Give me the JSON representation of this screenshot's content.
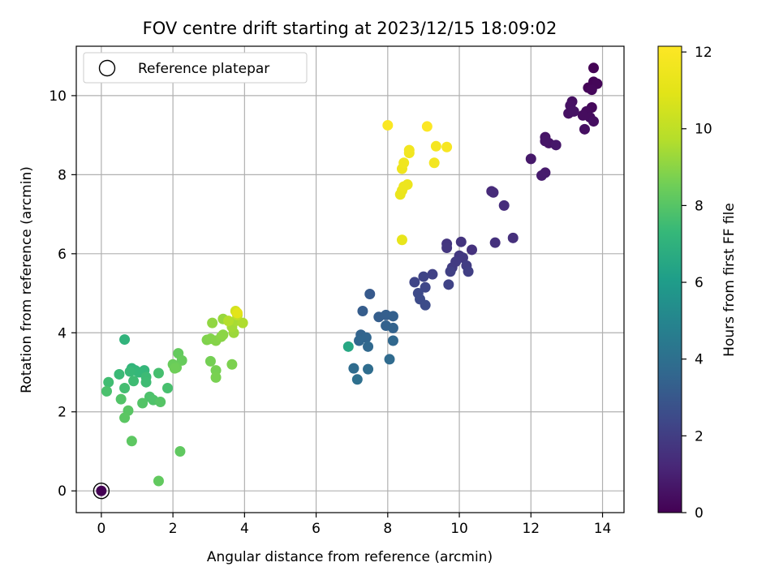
{
  "chart_data": {
    "type": "scatter",
    "title": "FOV centre drift starting at 2023/12/15 18:09:02",
    "xlabel": "Angular distance from reference (arcmin)",
    "ylabel": "Rotation from reference (arcmin)",
    "xlim": [
      -0.7,
      14.6
    ],
    "ylim": [
      -0.55,
      11.25
    ],
    "xticks": [
      0,
      2,
      4,
      6,
      8,
      10,
      12,
      14
    ],
    "yticks": [
      0,
      2,
      4,
      6,
      8,
      10
    ],
    "grid": true,
    "legend": {
      "position": "top-left",
      "label": "Reference platepar"
    },
    "reference_point": {
      "x": 0,
      "y": 0
    },
    "colorbar": {
      "label": "Hours from first FF file",
      "colormap": "viridis",
      "min": 0,
      "max": 12.15,
      "ticks": [
        0,
        2,
        4,
        6,
        8,
        10,
        12
      ]
    },
    "points": [
      {
        "x": 13.75,
        "y": 10.7,
        "c": 0.05
      },
      {
        "x": 13.6,
        "y": 10.2,
        "c": 0.1
      },
      {
        "x": 13.75,
        "y": 10.35,
        "c": 0.1
      },
      {
        "x": 13.85,
        "y": 10.3,
        "c": 0.15
      },
      {
        "x": 13.7,
        "y": 10.15,
        "c": 0.2
      },
      {
        "x": 13.7,
        "y": 9.7,
        "c": 0.25
      },
      {
        "x": 13.55,
        "y": 9.6,
        "c": 0.3
      },
      {
        "x": 13.45,
        "y": 9.5,
        "c": 0.35
      },
      {
        "x": 13.65,
        "y": 9.45,
        "c": 0.35
      },
      {
        "x": 13.75,
        "y": 9.35,
        "c": 0.4
      },
      {
        "x": 13.5,
        "y": 9.15,
        "c": 0.45
      },
      {
        "x": 13.15,
        "y": 9.85,
        "c": 0.45
      },
      {
        "x": 13.1,
        "y": 9.75,
        "c": 0.5
      },
      {
        "x": 13.05,
        "y": 9.55,
        "c": 0.5
      },
      {
        "x": 13.2,
        "y": 9.6,
        "c": 0.55
      },
      {
        "x": 12.4,
        "y": 8.95,
        "c": 0.6
      },
      {
        "x": 12.5,
        "y": 8.8,
        "c": 0.6
      },
      {
        "x": 12.4,
        "y": 8.85,
        "c": 0.65
      },
      {
        "x": 12.7,
        "y": 8.75,
        "c": 0.7
      },
      {
        "x": 12.0,
        "y": 8.4,
        "c": 0.75
      },
      {
        "x": 12.4,
        "y": 8.05,
        "c": 0.8
      },
      {
        "x": 12.3,
        "y": 7.98,
        "c": 0.85
      },
      {
        "x": 10.9,
        "y": 7.58,
        "c": 1.3
      },
      {
        "x": 10.95,
        "y": 7.55,
        "c": 1.35
      },
      {
        "x": 11.25,
        "y": 7.22,
        "c": 1.4
      },
      {
        "x": 11.5,
        "y": 6.4,
        "c": 1.5
      },
      {
        "x": 11.0,
        "y": 6.28,
        "c": 1.55
      },
      {
        "x": 10.35,
        "y": 6.1,
        "c": 1.6
      },
      {
        "x": 10.05,
        "y": 6.3,
        "c": 1.65
      },
      {
        "x": 9.65,
        "y": 6.25,
        "c": 1.7
      },
      {
        "x": 9.65,
        "y": 6.15,
        "c": 1.75
      },
      {
        "x": 10.0,
        "y": 5.95,
        "c": 1.8
      },
      {
        "x": 10.1,
        "y": 5.9,
        "c": 1.85
      },
      {
        "x": 9.9,
        "y": 5.8,
        "c": 1.9
      },
      {
        "x": 9.8,
        "y": 5.65,
        "c": 1.95
      },
      {
        "x": 10.2,
        "y": 5.7,
        "c": 2.0
      },
      {
        "x": 10.25,
        "y": 5.55,
        "c": 2.05
      },
      {
        "x": 9.75,
        "y": 5.55,
        "c": 2.1
      },
      {
        "x": 9.25,
        "y": 5.48,
        "c": 2.15
      },
      {
        "x": 9.7,
        "y": 5.22,
        "c": 2.2
      },
      {
        "x": 9.0,
        "y": 5.42,
        "c": 2.25
      },
      {
        "x": 8.75,
        "y": 5.28,
        "c": 2.3
      },
      {
        "x": 9.05,
        "y": 5.15,
        "c": 2.35
      },
      {
        "x": 8.85,
        "y": 5.0,
        "c": 2.45
      },
      {
        "x": 8.9,
        "y": 4.85,
        "c": 2.5
      },
      {
        "x": 9.05,
        "y": 4.7,
        "c": 2.55
      },
      {
        "x": 7.5,
        "y": 4.98,
        "c": 3.1
      },
      {
        "x": 7.3,
        "y": 4.55,
        "c": 3.2
      },
      {
        "x": 7.75,
        "y": 4.4,
        "c": 3.25
      },
      {
        "x": 7.95,
        "y": 4.45,
        "c": 3.3
      },
      {
        "x": 8.15,
        "y": 4.42,
        "c": 3.35
      },
      {
        "x": 7.95,
        "y": 4.18,
        "c": 3.4
      },
      {
        "x": 8.15,
        "y": 4.12,
        "c": 3.45
      },
      {
        "x": 7.25,
        "y": 3.95,
        "c": 3.5
      },
      {
        "x": 7.4,
        "y": 3.88,
        "c": 3.55
      },
      {
        "x": 7.2,
        "y": 3.8,
        "c": 3.6
      },
      {
        "x": 8.15,
        "y": 3.8,
        "c": 3.65
      },
      {
        "x": 7.45,
        "y": 3.65,
        "c": 3.7
      },
      {
        "x": 8.05,
        "y": 3.33,
        "c": 3.8
      },
      {
        "x": 7.05,
        "y": 3.1,
        "c": 3.85
      },
      {
        "x": 7.45,
        "y": 3.08,
        "c": 3.9
      },
      {
        "x": 7.15,
        "y": 2.82,
        "c": 4.0
      },
      {
        "x": 6.9,
        "y": 3.65,
        "c": 6.5
      },
      {
        "x": 0.65,
        "y": 3.83,
        "c": 7.1
      },
      {
        "x": 0.85,
        "y": 3.1,
        "c": 7.15
      },
      {
        "x": 0.95,
        "y": 3.05,
        "c": 7.2
      },
      {
        "x": 1.2,
        "y": 3.05,
        "c": 7.25
      },
      {
        "x": 1.05,
        "y": 3.0,
        "c": 7.3
      },
      {
        "x": 0.8,
        "y": 3.02,
        "c": 7.35
      },
      {
        "x": 0.5,
        "y": 2.95,
        "c": 7.4
      },
      {
        "x": 1.25,
        "y": 2.88,
        "c": 7.45
      },
      {
        "x": 1.25,
        "y": 2.75,
        "c": 7.5
      },
      {
        "x": 0.9,
        "y": 2.78,
        "c": 7.5
      },
      {
        "x": 0.2,
        "y": 2.75,
        "c": 7.55
      },
      {
        "x": 0.65,
        "y": 2.6,
        "c": 7.6
      },
      {
        "x": 1.6,
        "y": 2.98,
        "c": 7.65
      },
      {
        "x": 1.85,
        "y": 2.6,
        "c": 7.7
      },
      {
        "x": 0.15,
        "y": 2.52,
        "c": 7.75
      },
      {
        "x": 1.35,
        "y": 2.38,
        "c": 7.8
      },
      {
        "x": 1.45,
        "y": 2.3,
        "c": 7.85
      },
      {
        "x": 0.55,
        "y": 2.32,
        "c": 7.9
      },
      {
        "x": 1.15,
        "y": 2.22,
        "c": 7.95
      },
      {
        "x": 1.65,
        "y": 2.25,
        "c": 8.0
      },
      {
        "x": 0.75,
        "y": 2.03,
        "c": 8.05
      },
      {
        "x": 0.65,
        "y": 1.85,
        "c": 8.1
      },
      {
        "x": 0.85,
        "y": 1.26,
        "c": 8.15
      },
      {
        "x": 2.2,
        "y": 1.0,
        "c": 8.2
      },
      {
        "x": 1.6,
        "y": 0.25,
        "c": 8.25
      },
      {
        "x": 2.15,
        "y": 3.48,
        "c": 8.3
      },
      {
        "x": 2.25,
        "y": 3.3,
        "c": 8.35
      },
      {
        "x": 2.0,
        "y": 3.2,
        "c": 8.4
      },
      {
        "x": 2.1,
        "y": 3.12,
        "c": 8.45
      },
      {
        "x": 2.05,
        "y": 3.1,
        "c": 8.5
      },
      {
        "x": 3.05,
        "y": 3.28,
        "c": 8.6
      },
      {
        "x": 3.2,
        "y": 3.05,
        "c": 8.65
      },
      {
        "x": 3.2,
        "y": 2.87,
        "c": 8.7
      },
      {
        "x": 3.65,
        "y": 3.2,
        "c": 8.75
      },
      {
        "x": 2.95,
        "y": 3.82,
        "c": 8.8
      },
      {
        "x": 3.05,
        "y": 3.85,
        "c": 8.85
      },
      {
        "x": 3.2,
        "y": 3.8,
        "c": 8.9
      },
      {
        "x": 3.35,
        "y": 3.9,
        "c": 8.95
      },
      {
        "x": 3.4,
        "y": 3.95,
        "c": 9.0
      },
      {
        "x": 3.1,
        "y": 4.25,
        "c": 9.1
      },
      {
        "x": 3.4,
        "y": 4.35,
        "c": 9.2
      },
      {
        "x": 3.7,
        "y": 4.0,
        "c": 9.3
      },
      {
        "x": 3.65,
        "y": 4.15,
        "c": 9.4
      },
      {
        "x": 3.75,
        "y": 4.3,
        "c": 9.5
      },
      {
        "x": 3.95,
        "y": 4.25,
        "c": 9.6
      },
      {
        "x": 3.55,
        "y": 4.3,
        "c": 9.7
      },
      {
        "x": 3.8,
        "y": 4.45,
        "c": 10.0
      },
      {
        "x": 3.75,
        "y": 4.55,
        "c": 10.5
      },
      {
        "x": 3.8,
        "y": 4.5,
        "c": 11.0
      },
      {
        "x": 8.4,
        "y": 6.35,
        "c": 11.2
      },
      {
        "x": 8.35,
        "y": 7.5,
        "c": 11.3
      },
      {
        "x": 8.4,
        "y": 7.6,
        "c": 11.35
      },
      {
        "x": 8.55,
        "y": 7.75,
        "c": 11.4
      },
      {
        "x": 8.45,
        "y": 7.7,
        "c": 11.45
      },
      {
        "x": 8.4,
        "y": 8.15,
        "c": 11.5
      },
      {
        "x": 8.45,
        "y": 8.3,
        "c": 11.55
      },
      {
        "x": 8.6,
        "y": 8.55,
        "c": 11.6
      },
      {
        "x": 8.6,
        "y": 8.62,
        "c": 11.65
      },
      {
        "x": 9.3,
        "y": 8.3,
        "c": 11.7
      },
      {
        "x": 9.35,
        "y": 8.72,
        "c": 11.8
      },
      {
        "x": 9.65,
        "y": 8.7,
        "c": 11.9
      },
      {
        "x": 8.0,
        "y": 9.25,
        "c": 12.0
      },
      {
        "x": 9.1,
        "y": 9.22,
        "c": 12.1
      },
      {
        "x": 0.0,
        "y": 0.0,
        "c": 0.0
      }
    ]
  }
}
